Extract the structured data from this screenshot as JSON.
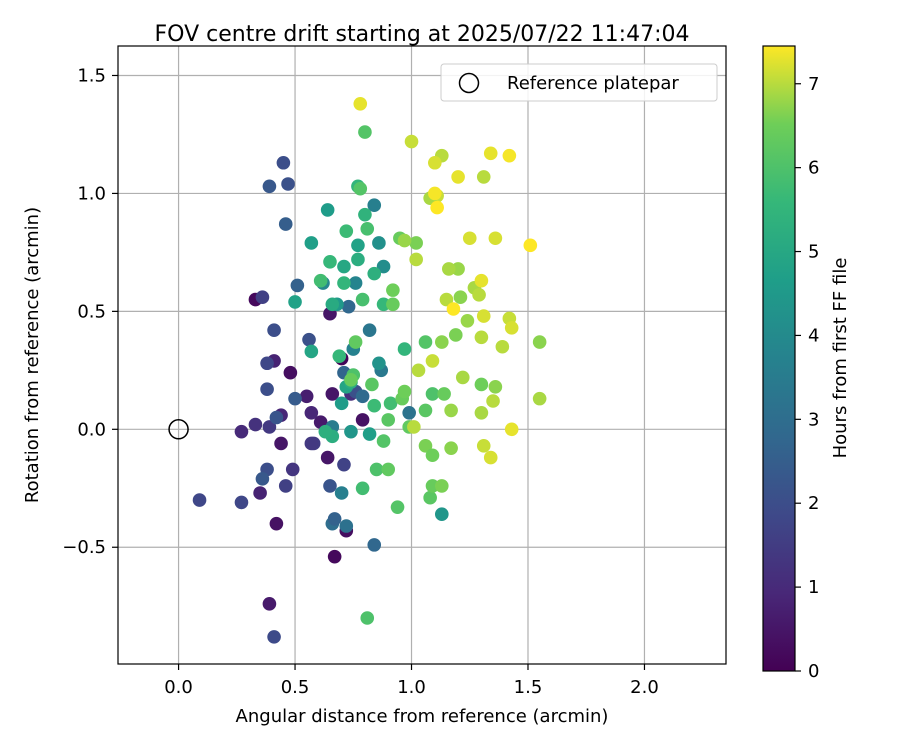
{
  "chart_data": {
    "type": "scatter",
    "title": "FOV centre drift starting at 2025/07/22 11:47:04",
    "xlabel": "Angular distance from reference (arcmin)",
    "ylabel": "Rotation from reference (arcmin)",
    "xlim": [
      -0.26,
      2.35
    ],
    "ylim": [
      -0.995,
      1.625
    ],
    "xticks": [
      0.0,
      0.5,
      1.0,
      1.5,
      2.0
    ],
    "xtick_labels": [
      "0.0",
      "0.5",
      "1.0",
      "1.5",
      "2.0"
    ],
    "yticks": [
      -0.5,
      0.0,
      0.5,
      1.0,
      1.5
    ],
    "ytick_labels": [
      "−0.5",
      "0.0",
      "0.5",
      "1.0",
      "1.5"
    ],
    "grid": true,
    "legend": {
      "placement": "top-right",
      "entries": [
        {
          "label": "Reference platepar",
          "marker": "open-circle",
          "x": 0.0,
          "y": 0.0
        }
      ]
    },
    "colorbar": {
      "label": "Hours from first FF file",
      "range": [
        0,
        7.45
      ],
      "ticks": [
        0,
        1,
        2,
        3,
        4,
        5,
        6,
        7
      ],
      "tick_labels": [
        "0",
        "1",
        "2",
        "3",
        "4",
        "5",
        "6",
        "7"
      ],
      "colormap": "viridis"
    },
    "series": [
      {
        "columns": [
          "x",
          "y",
          "hours"
        ],
        "points": [
          [
            0.7,
            0.3,
            0.1
          ],
          [
            0.33,
            0.55,
            0.2
          ],
          [
            0.48,
            0.24,
            0.3
          ],
          [
            0.42,
            -0.4,
            0.4
          ],
          [
            0.64,
            -0.12,
            0.5
          ],
          [
            0.72,
            -0.43,
            0.3
          ],
          [
            0.67,
            -0.54,
            0.2
          ],
          [
            0.61,
            0.03,
            0.6
          ],
          [
            0.55,
            0.14,
            0.7
          ],
          [
            0.39,
            -0.74,
            0.6
          ],
          [
            0.35,
            -0.27,
            0.8
          ],
          [
            0.66,
            0.15,
            0.5
          ],
          [
            0.79,
            0.04,
            0.4
          ],
          [
            0.65,
            0.49,
            0.5
          ],
          [
            0.44,
            0.06,
            0.9
          ],
          [
            0.44,
            -0.06,
            0.5
          ],
          [
            0.27,
            -0.01,
            1.0
          ],
          [
            0.33,
            0.02,
            1.2
          ],
          [
            0.49,
            -0.17,
            1.3
          ],
          [
            0.46,
            -0.24,
            1.6
          ],
          [
            0.57,
            0.07,
            0.9
          ],
          [
            0.41,
            0.29,
            0.8
          ],
          [
            0.74,
            0.15,
            1.1
          ],
          [
            0.39,
            0.01,
            1.4
          ],
          [
            0.58,
            -0.06,
            1.5
          ],
          [
            0.71,
            -0.15,
            1.7
          ],
          [
            0.57,
            -0.06,
            1.4
          ],
          [
            0.09,
            -0.3,
            1.8
          ],
          [
            0.27,
            -0.31,
            1.8
          ],
          [
            0.36,
            0.56,
            1.6
          ],
          [
            0.38,
            -0.17,
            2.0
          ],
          [
            0.41,
            -0.88,
            1.9
          ],
          [
            0.38,
            0.17,
            2.0
          ],
          [
            0.41,
            0.42,
            2.0
          ],
          [
            0.38,
            0.28,
            1.8
          ],
          [
            0.65,
            -0.24,
            2.2
          ],
          [
            0.76,
            0.16,
            2.1
          ],
          [
            0.56,
            0.38,
            2.1
          ],
          [
            0.45,
            1.13,
            2.0
          ],
          [
            0.47,
            1.04,
            2.1
          ],
          [
            0.39,
            1.03,
            2.3
          ],
          [
            0.46,
            0.87,
            2.5
          ],
          [
            0.5,
            0.13,
            2.4
          ],
          [
            0.51,
            0.61,
            2.6
          ],
          [
            0.36,
            -0.21,
            2.3
          ],
          [
            0.42,
            0.05,
            2.2
          ],
          [
            0.73,
            0.52,
            2.8
          ],
          [
            0.71,
            0.24,
            2.7
          ],
          [
            0.84,
            -0.49,
            2.8
          ],
          [
            0.66,
            -0.4,
            3.0
          ],
          [
            0.67,
            -0.38,
            2.6
          ],
          [
            0.72,
            -0.41,
            3.1
          ],
          [
            0.79,
            0.14,
            2.9
          ],
          [
            0.82,
            0.42,
            3.3
          ],
          [
            0.87,
            0.25,
            3.4
          ],
          [
            0.99,
            0.07,
            3.2
          ],
          [
            0.66,
            0.01,
            3.5
          ],
          [
            0.7,
            -0.27,
            3.6
          ],
          [
            0.84,
            0.95,
            3.6
          ],
          [
            0.76,
            0.62,
            3.8
          ],
          [
            0.75,
            0.34,
            3.7
          ],
          [
            0.62,
            0.62,
            3.9
          ],
          [
            0.86,
            0.79,
            4.2
          ],
          [
            0.88,
            0.69,
            4.1
          ],
          [
            0.86,
            0.28,
            4.3
          ],
          [
            0.74,
            -0.01,
            4.4
          ],
          [
            1.13,
            -0.36,
            4.4
          ],
          [
            0.64,
            0.93,
            4.6
          ],
          [
            0.68,
            0.53,
            4.5
          ],
          [
            0.57,
            0.79,
            4.7
          ],
          [
            0.77,
            0.78,
            4.8
          ],
          [
            0.7,
            0.11,
            4.6
          ],
          [
            0.72,
            0.18,
            4.9
          ],
          [
            0.82,
            -0.02,
            4.7
          ],
          [
            0.57,
            0.33,
            4.9
          ],
          [
            0.71,
            0.69,
            5.0
          ],
          [
            0.66,
            0.53,
            5.1
          ],
          [
            0.5,
            0.54,
            4.8
          ],
          [
            0.66,
            -0.03,
            5.2
          ],
          [
            0.63,
            -0.01,
            5.3
          ],
          [
            0.74,
            0.2,
            5.2
          ],
          [
            0.8,
            0.91,
            5.4
          ],
          [
            0.77,
            1.03,
            5.5
          ],
          [
            0.84,
            0.66,
            5.3
          ],
          [
            0.77,
            0.72,
            5.2
          ],
          [
            0.88,
            0.53,
            5.6
          ],
          [
            0.71,
            0.62,
            5.5
          ],
          [
            0.72,
            0.84,
            5.7
          ],
          [
            0.79,
            -0.25,
            5.8
          ],
          [
            0.65,
            0.71,
            5.6
          ],
          [
            0.61,
            0.63,
            5.8
          ],
          [
            0.79,
            0.55,
            5.9
          ],
          [
            0.75,
            0.23,
            6.0
          ],
          [
            0.69,
            0.31,
            5.6
          ],
          [
            0.81,
            0.85,
            5.9
          ],
          [
            0.78,
            1.02,
            6.1
          ],
          [
            0.83,
            0.19,
            6.2
          ],
          [
            0.84,
            0.1,
            5.7
          ],
          [
            0.97,
            0.34,
            5.5
          ],
          [
            0.91,
            0.11,
            5.8
          ],
          [
            0.85,
            -0.17,
            6.0
          ],
          [
            0.9,
            -0.17,
            6.3
          ],
          [
            0.94,
            -0.33,
            6.1
          ],
          [
            0.81,
            -0.8,
            6.0
          ],
          [
            0.8,
            1.26,
            6.1
          ],
          [
            0.76,
            0.37,
            6.3
          ],
          [
            0.74,
            0.21,
            6.4
          ],
          [
            0.92,
            0.53,
            6.4
          ],
          [
            0.92,
            0.59,
            6.5
          ],
          [
            0.9,
            0.04,
            6.2
          ],
          [
            0.88,
            -0.05,
            6.1
          ],
          [
            0.96,
            0.13,
            6.4
          ],
          [
            0.97,
            0.16,
            6.5
          ],
          [
            0.99,
            0.01,
            6.3
          ],
          [
            1.06,
            0.37,
            6.1
          ],
          [
            1.08,
            -0.29,
            6.2
          ],
          [
            1.09,
            -0.24,
            6.4
          ],
          [
            1.06,
            -0.07,
            6.6
          ],
          [
            1.09,
            0.15,
            6.0
          ],
          [
            1.06,
            0.08,
            6.2
          ],
          [
            1.09,
            -0.11,
            6.5
          ],
          [
            1.14,
            0.15,
            6.4
          ],
          [
            1.13,
            0.37,
            6.7
          ],
          [
            1.13,
            -0.24,
            6.6
          ],
          [
            1.17,
            -0.08,
            6.7
          ],
          [
            1.17,
            0.08,
            6.8
          ],
          [
            1.19,
            0.4,
            6.6
          ],
          [
            1.22,
            0.22,
            6.9
          ],
          [
            1.21,
            0.56,
            6.7
          ],
          [
            1.24,
            0.46,
            6.8
          ],
          [
            1.27,
            0.6,
            6.9
          ],
          [
            1.29,
            0.57,
            7.0
          ],
          [
            1.3,
            0.19,
            6.5
          ],
          [
            1.36,
            0.18,
            6.7
          ],
          [
            1.35,
            0.12,
            7.0
          ],
          [
            1.31,
            -0.07,
            7.1
          ],
          [
            1.3,
            0.39,
            7.0
          ],
          [
            1.31,
            0.48,
            7.2
          ],
          [
            1.34,
            -0.12,
            7.2
          ],
          [
            1.3,
            0.07,
            6.9
          ],
          [
            1.39,
            0.35,
            7.0
          ],
          [
            1.42,
            0.47,
            7.1
          ],
          [
            1.43,
            0.43,
            7.2
          ],
          [
            1.43,
            0.0,
            7.3
          ],
          [
            1.55,
            0.37,
            6.7
          ],
          [
            1.55,
            0.13,
            6.9
          ],
          [
            1.3,
            0.63,
            7.3
          ],
          [
            1.36,
            0.81,
            7.2
          ],
          [
            1.34,
            1.17,
            7.3
          ],
          [
            1.31,
            1.07,
            7.0
          ],
          [
            1.42,
            1.16,
            7.4
          ],
          [
            1.25,
            0.81,
            7.2
          ],
          [
            1.2,
            1.07,
            7.3
          ],
          [
            1.11,
            0.99,
            7.1
          ],
          [
            1.08,
            0.98,
            6.9
          ],
          [
            1.13,
            1.16,
            7.0
          ],
          [
            1.1,
            1.13,
            7.2
          ],
          [
            1.1,
            1.0,
            7.4
          ],
          [
            1.11,
            0.94,
            7.6
          ],
          [
            1.2,
            0.68,
            6.8
          ],
          [
            1.16,
            0.68,
            6.9
          ],
          [
            1.15,
            0.55,
            7.0
          ],
          [
            1.18,
            0.51,
            7.5
          ],
          [
            1.09,
            0.29,
            7.1
          ],
          [
            1.03,
            0.25,
            7.0
          ],
          [
            1.01,
            0.01,
            7.0
          ],
          [
            1.0,
            1.22,
            7.1
          ],
          [
            1.02,
            0.79,
            6.6
          ],
          [
            0.95,
            0.81,
            6.4
          ],
          [
            0.97,
            0.8,
            6.8
          ],
          [
            1.02,
            0.72,
            7.0
          ],
          [
            1.51,
            0.78,
            7.6
          ],
          [
            0.78,
            1.38,
            7.3
          ]
        ]
      }
    ]
  }
}
